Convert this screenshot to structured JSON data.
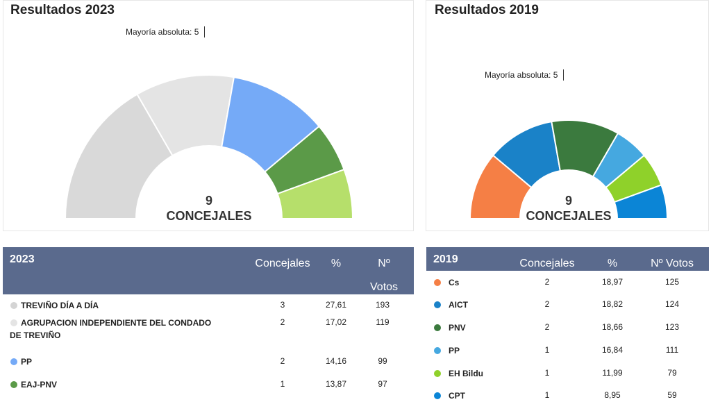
{
  "panels": [
    {
      "title": "Resultados 2023",
      "majority": "Mayoría absoluta: 5",
      "total": "9",
      "total_label": "CONCEJALES",
      "segments": [
        {
          "color": "#d9d9d9",
          "seats": 3
        },
        {
          "color": "#e4e4e4",
          "seats": 2
        },
        {
          "color": "#75aaf7",
          "seats": 2
        },
        {
          "color": "#5b9a48",
          "seats": 1
        },
        {
          "color": "#b6df6b",
          "seats": 1
        }
      ]
    },
    {
      "title": "Resultados 2019",
      "majority": "Mayoría absoluta: 5",
      "total": "9",
      "total_label": "CONCEJALES",
      "segments": [
        {
          "color": "#f57f45",
          "seats": 2
        },
        {
          "color": "#1a82c8",
          "seats": 2
        },
        {
          "color": "#3b7a3e",
          "seats": 2
        },
        {
          "color": "#45a8e0",
          "seats": 1
        },
        {
          "color": "#8fd12a",
          "seats": 1
        },
        {
          "color": "#0b85d6",
          "seats": 1
        }
      ]
    }
  ],
  "tables": [
    {
      "year": "2023",
      "headers": [
        "Concejales",
        "%",
        "Nº Votos"
      ],
      "rows": [
        {
          "name": "TREVIÑO DÍA A DÍA",
          "color": "#d4d4d4",
          "seats": 3,
          "pct": "27,61",
          "votes": 193
        },
        {
          "name": "AGRUPACION INDEPENDIENTE DEL CONDADO DE TREVIÑO",
          "color": "#e4e4e4",
          "seats": 2,
          "pct": "17,02",
          "votes": 119
        },
        {
          "name": "PP",
          "color": "#75aaf7",
          "seats": 2,
          "pct": "14,16",
          "votes": 99
        },
        {
          "name": "EAJ-PNV",
          "color": "#5b9a48",
          "seats": 1,
          "pct": "13,87",
          "votes": 97
        }
      ]
    },
    {
      "year": "2019",
      "headers": [
        "Concejales",
        "%",
        "Nº Votos"
      ],
      "rows": [
        {
          "name": "Cs",
          "color": "#f57f45",
          "seats": 2,
          "pct": "18,97",
          "votes": 125
        },
        {
          "name": "AICT",
          "color": "#1a82c8",
          "seats": 2,
          "pct": "18,82",
          "votes": 124
        },
        {
          "name": "PNV",
          "color": "#3b7a3e",
          "seats": 2,
          "pct": "18,66",
          "votes": 123
        },
        {
          "name": "PP",
          "color": "#45a8e0",
          "seats": 1,
          "pct": "16,84",
          "votes": 111
        },
        {
          "name": "EH Bildu",
          "color": "#8fd12a",
          "seats": 1,
          "pct": "11,99",
          "votes": 79
        },
        {
          "name": "CPT",
          "color": "#0b85d6",
          "seats": 1,
          "pct": "8,95",
          "votes": 59
        }
      ]
    }
  ]
}
